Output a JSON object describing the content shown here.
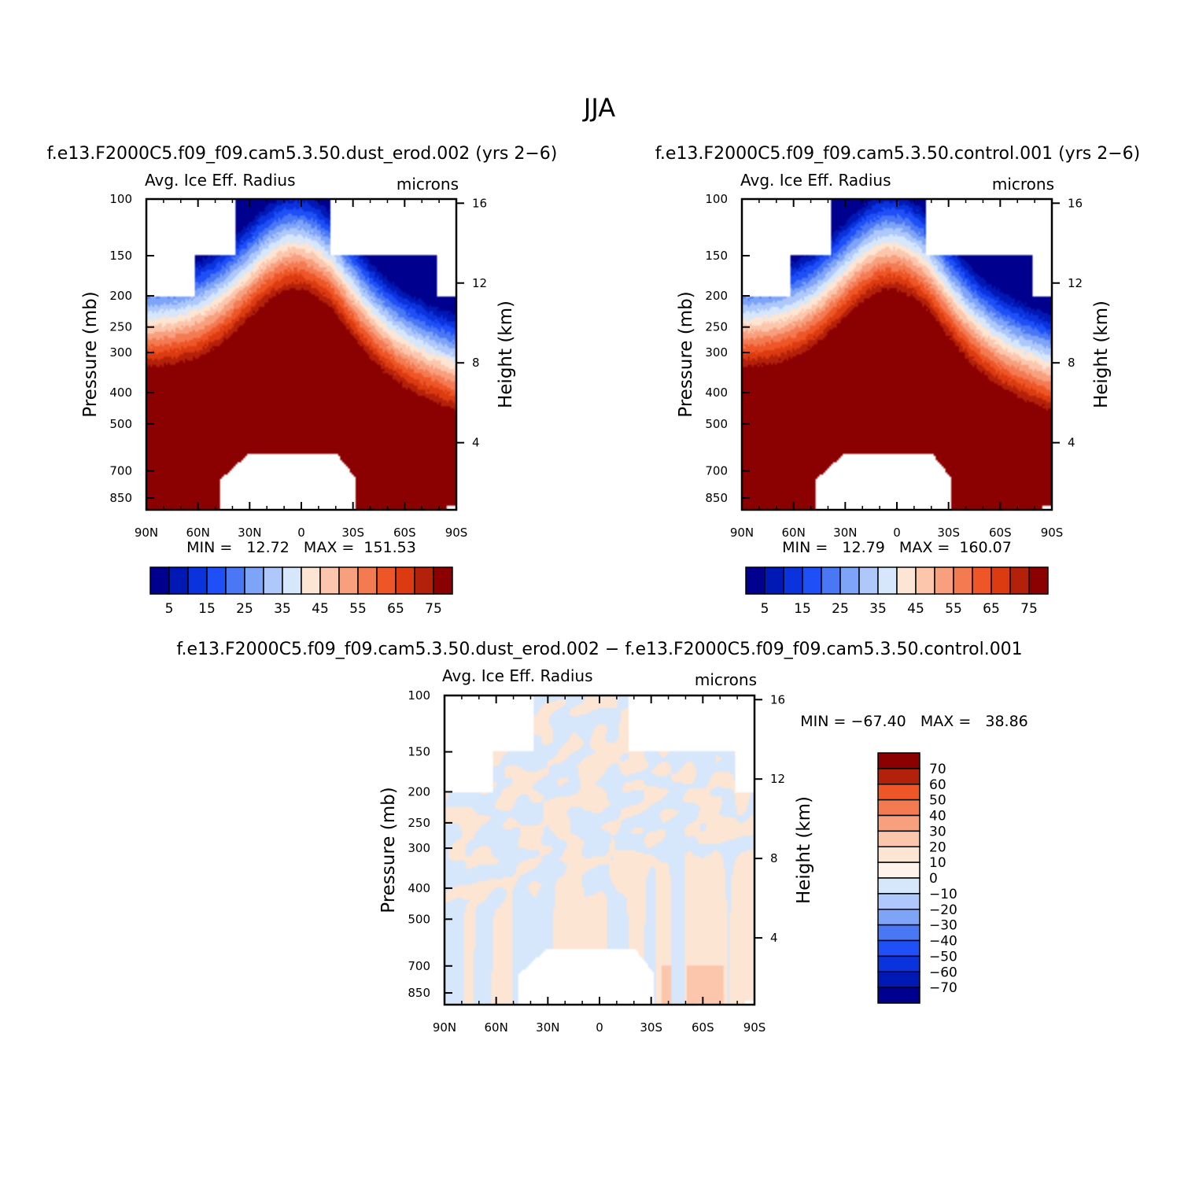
{
  "figure": {
    "title": "JJA"
  },
  "chart_data": [
    {
      "type": "heatmap",
      "id": "dust",
      "title": "f.e13.F2000C5.f09_f09.cam5.3.50.dust_erod.002 (yrs 2−6)",
      "variable": "Avg. Ice Eff. Radius",
      "units": "microns",
      "ylabel": "Pressure (mb)",
      "ylabel_right": "Height (km)",
      "x_ticks": [
        "90N",
        "60N",
        "30N",
        "0",
        "30S",
        "60S",
        "90S"
      ],
      "y_ticks": [
        "100",
        "150",
        "200",
        "250",
        "300",
        "400",
        "500",
        "700",
        "850"
      ],
      "y_right_ticks": [
        "16",
        "12",
        "8",
        "4"
      ],
      "stats": "MIN =   12.72   MAX =  151.53",
      "min": 12.72,
      "max": 151.53,
      "legend_labels": [
        "5",
        "15",
        "25",
        "35",
        "45",
        "55",
        "65",
        "75"
      ]
    },
    {
      "type": "heatmap",
      "id": "ctrl",
      "title": "f.e13.F2000C5.f09_f09.cam5.3.50.control.001 (yrs 2−6)",
      "variable": "Avg. Ice Eff. Radius",
      "units": "microns",
      "ylabel": "Pressure (mb)",
      "ylabel_right": "Height (km)",
      "x_ticks": [
        "90N",
        "60N",
        "30N",
        "0",
        "30S",
        "60S",
        "90S"
      ],
      "y_ticks": [
        "100",
        "150",
        "200",
        "250",
        "300",
        "400",
        "500",
        "700",
        "850"
      ],
      "y_right_ticks": [
        "16",
        "12",
        "8",
        "4"
      ],
      "stats": "MIN =   12.79   MAX =  160.07",
      "min": 12.79,
      "max": 160.07,
      "legend_labels": [
        "5",
        "15",
        "25",
        "35",
        "45",
        "55",
        "65",
        "75"
      ]
    },
    {
      "type": "heatmap",
      "id": "diff",
      "title": "f.e13.F2000C5.f09_f09.cam5.3.50.dust_erod.002 − f.e13.F2000C5.f09_f09.cam5.3.50.control.001",
      "variable": "Avg. Ice Eff. Radius",
      "units": "microns",
      "ylabel": "Pressure (mb)",
      "ylabel_right": "Height (km)",
      "x_ticks": [
        "90N",
        "60N",
        "30N",
        "0",
        "30S",
        "60S",
        "90S"
      ],
      "y_ticks": [
        "100",
        "150",
        "200",
        "250",
        "300",
        "400",
        "500",
        "700",
        "850"
      ],
      "y_right_ticks": [
        "16",
        "12",
        "8",
        "4"
      ],
      "stats": "MIN = −67.40   MAX =   38.86",
      "min": -67.4,
      "max": 38.86,
      "legend_labels": [
        "70",
        "60",
        "50",
        "40",
        "30",
        "20",
        "10",
        "0",
        "−10",
        "−20",
        "−30",
        "−40",
        "−50",
        "−60",
        "−70"
      ]
    }
  ],
  "colors": {
    "abs_scale": [
      "#00008f",
      "#0018b4",
      "#0a33de",
      "#1f4ff7",
      "#4a78f5",
      "#7ea4f8",
      "#aec8fb",
      "#d6e7fc",
      "#fde5d3",
      "#fcc6ac",
      "#f89f7e",
      "#f47a52",
      "#ee5527",
      "#dc3a10",
      "#b3210a",
      "#8b0000"
    ],
    "diff_scale": [
      "#8b0000",
      "#b3210a",
      "#ee5527",
      "#f47a52",
      "#f89f7e",
      "#fcc6ac",
      "#fde5d3",
      "#d6e7fc",
      "#aec8fb",
      "#7ea4f8",
      "#4a78f5",
      "#1f4ff7",
      "#0a33de",
      "#0018b4",
      "#00008f"
    ]
  }
}
